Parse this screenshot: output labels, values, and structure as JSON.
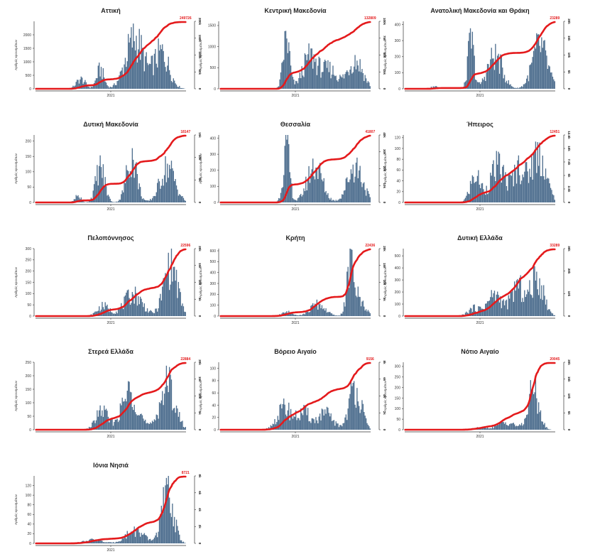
{
  "figure": {
    "x_tick_label": "2021",
    "y_axis_label": "Αριθμός κρουσμάτων",
    "colors": {
      "bars": "#4f6f8f",
      "line": "#e41a1c",
      "axis": "#333333"
    }
  },
  "chart_data": [
    {
      "type": "bar+line",
      "title": "Αττική",
      "ylim": [
        0,
        2500
      ],
      "yticks": [
        "0",
        "500",
        "1000",
        "1500",
        "2000"
      ],
      "cum_max": 249726,
      "cum_ticks": [
        "200k",
        "150k",
        "100k",
        "50k",
        "0"
      ],
      "cum_marks": [
        {
          "t": 0.56,
          "label": ""
        },
        {
          "t": 0.72,
          "label": ""
        },
        {
          "t": 1.0,
          "label": "249726"
        }
      ],
      "peaks": [
        [
          0.3,
          400,
          0.03
        ],
        [
          0.43,
          800,
          0.025
        ],
        [
          0.66,
          2100,
          0.06
        ],
        [
          0.84,
          1500,
          0.05
        ]
      ]
    },
    {
      "type": "bar+line",
      "title": "Κεντρική Μακεδονία",
      "ylim": [
        0,
        1600
      ],
      "yticks": [
        "0",
        "500",
        "1000",
        "1500"
      ],
      "cum_max": 132809,
      "cum_ticks": [
        "100k",
        "75k",
        "50k",
        "25k",
        "0"
      ],
      "cum_marks": [
        {
          "t": 0.46,
          "label": ""
        },
        {
          "t": 0.66,
          "label": ""
        },
        {
          "t": 1.0,
          "label": "132809"
        }
      ],
      "peaks": [
        [
          0.44,
          1350,
          0.022
        ],
        [
          0.6,
          850,
          0.05
        ],
        [
          0.73,
          500,
          0.05
        ],
        [
          0.9,
          780,
          0.05
        ]
      ]
    },
    {
      "type": "bar+line",
      "title": "Ανατολική Μακεδονία και Θράκη",
      "ylim": [
        0,
        420
      ],
      "yticks": [
        "0",
        "100",
        "200",
        "300",
        "400"
      ],
      "cum_max": 23289,
      "cum_ticks": [
        "20k",
        "15k",
        "10k",
        "5k",
        "0"
      ],
      "cum_marks": [
        {
          "t": 0.45,
          "label": ""
        },
        {
          "t": 0.7,
          "label": ""
        },
        {
          "t": 1.0,
          "label": "23289"
        }
      ],
      "peaks": [
        [
          0.2,
          15,
          0.03
        ],
        [
          0.44,
          340,
          0.02
        ],
        [
          0.6,
          230,
          0.05
        ],
        [
          0.9,
          300,
          0.05
        ]
      ]
    },
    {
      "type": "bar+line",
      "title": "Δυτική Μακεδονία",
      "ylim": [
        0,
        220
      ],
      "yticks": [
        "0",
        "50",
        "100",
        "150",
        "200"
      ],
      "cum_max": 18147,
      "cum_ticks": [
        "15k",
        "10k",
        "5k",
        "0"
      ],
      "cum_marks": [
        {
          "t": 0.44,
          "label": ""
        },
        {
          "t": 0.63,
          "label": ""
        },
        {
          "t": 1.0,
          "label": "18147"
        }
      ],
      "peaks": [
        [
          0.28,
          25,
          0.02
        ],
        [
          0.43,
          130,
          0.03
        ],
        [
          0.64,
          170,
          0.035
        ],
        [
          0.88,
          130,
          0.05
        ]
      ]
    },
    {
      "type": "bar+line",
      "title": "Θεσσαλία",
      "ylim": [
        0,
        420
      ],
      "yticks": [
        "0",
        "100",
        "200",
        "300",
        "400"
      ],
      "cum_max": 41807,
      "cum_ticks": [
        "40k",
        "30k",
        "20k",
        "10k",
        "0"
      ],
      "cum_marks": [
        {
          "t": 0.45,
          "label": ""
        },
        {
          "t": 0.68,
          "label": ""
        },
        {
          "t": 1.0,
          "label": "41807"
        }
      ],
      "peaks": [
        [
          0.44,
          380,
          0.022
        ],
        [
          0.63,
          260,
          0.05
        ],
        [
          0.9,
          260,
          0.05
        ]
      ]
    },
    {
      "type": "bar+line",
      "title": "Ήπειρος",
      "ylim": [
        0,
        125
      ],
      "yticks": [
        "0",
        "20",
        "40",
        "60",
        "80",
        "100",
        "120"
      ],
      "cum_max": 12451,
      "cum_ticks": [
        "12.5k",
        "10k",
        "7.5k",
        "5k",
        "2.5k",
        "0"
      ],
      "cum_marks": [
        {
          "t": 0.58,
          "label": ""
        },
        {
          "t": 0.72,
          "label": ""
        },
        {
          "t": 1.0,
          "label": "12451"
        }
      ],
      "peaks": [
        [
          0.47,
          55,
          0.035
        ],
        [
          0.62,
          75,
          0.05
        ],
        [
          0.76,
          70,
          0.04
        ],
        [
          0.89,
          105,
          0.05
        ]
      ]
    },
    {
      "type": "bar+line",
      "title": "Πελοπόννησος",
      "ylim": [
        0,
        300
      ],
      "yticks": [
        "0",
        "50",
        "100",
        "150",
        "200",
        "250",
        "300"
      ],
      "cum_max": 22596,
      "cum_ticks": [
        "20k",
        "15k",
        "10k",
        "5k",
        "0"
      ],
      "cum_marks": [
        {
          "t": 0.58,
          "label": ""
        },
        {
          "t": 0.8,
          "label": ""
        },
        {
          "t": 1.0,
          "label": "22596"
        }
      ],
      "peaks": [
        [
          0.45,
          50,
          0.04
        ],
        [
          0.65,
          110,
          0.06
        ],
        [
          0.9,
          260,
          0.045
        ]
      ]
    },
    {
      "type": "bar+line",
      "title": "Κρήτη",
      "ylim": [
        0,
        620
      ],
      "yticks": [
        "0",
        "100",
        "200",
        "300",
        "400",
        "500",
        "600"
      ],
      "cum_max": 22436,
      "cum_ticks": [
        "20k",
        "15k",
        "10k",
        "5k",
        "0"
      ],
      "cum_marks": [
        {
          "t": 0.66,
          "label": ""
        },
        {
          "t": 0.82,
          "label": ""
        },
        {
          "t": 1.0,
          "label": "22436"
        }
      ],
      "peaks": [
        [
          0.45,
          40,
          0.04
        ],
        [
          0.65,
          120,
          0.05
        ],
        [
          0.87,
          500,
          0.025
        ],
        [
          0.93,
          150,
          0.04
        ]
      ]
    },
    {
      "type": "bar+line",
      "title": "Δυτική Ελλάδα",
      "ylim": [
        0,
        560
      ],
      "yticks": [
        "0",
        "100",
        "200",
        "300",
        "400",
        "500"
      ],
      "cum_max": 33289,
      "cum_ticks": [
        "30k",
        "20k",
        "10k",
        "0"
      ],
      "cum_marks": [
        {
          "t": 0.62,
          "label": ""
        },
        {
          "t": 0.73,
          "label": ""
        },
        {
          "t": 1.0,
          "label": "33289"
        }
      ],
      "peaks": [
        [
          0.46,
          70,
          0.04
        ],
        [
          0.6,
          200,
          0.05
        ],
        [
          0.75,
          280,
          0.04
        ],
        [
          0.88,
          360,
          0.045
        ]
      ]
    },
    {
      "type": "bar+line",
      "title": "Στερεά Ελλάδα",
      "ylim": [
        0,
        250
      ],
      "yticks": [
        "0",
        "50",
        "100",
        "150",
        "200",
        "250"
      ],
      "cum_max": 22884,
      "cum_ticks": [
        "20k",
        "15k",
        "10k",
        "5k",
        "0"
      ],
      "cum_marks": [
        {
          "t": 0.48,
          "label": ""
        },
        {
          "t": 0.66,
          "label": ""
        },
        {
          "t": 1.0,
          "label": "22884"
        }
      ],
      "peaks": [
        [
          0.44,
          80,
          0.04
        ],
        [
          0.63,
          160,
          0.055
        ],
        [
          0.88,
          190,
          0.05
        ]
      ]
    },
    {
      "type": "bar+line",
      "title": "Βόρειο Αιγαίο",
      "ylim": [
        0,
        110
      ],
      "yticks": [
        "0",
        "20",
        "40",
        "60",
        "80",
        "100"
      ],
      "cum_max": 9156,
      "cum_ticks": [
        "8k",
        "6k",
        "4k",
        "2k",
        "0"
      ],
      "cum_marks": [
        {
          "t": 0.46,
          "label": ""
        },
        {
          "t": 0.68,
          "label": ""
        },
        {
          "t": 1.0,
          "label": "9156"
        }
      ],
      "peaks": [
        [
          0.43,
          40,
          0.05
        ],
        [
          0.56,
          30,
          0.04
        ],
        [
          0.7,
          30,
          0.05
        ],
        [
          0.9,
          80,
          0.04
        ]
      ]
    },
    {
      "type": "bar+line",
      "title": "Νότιο Αιγαίο",
      "ylim": [
        0,
        320
      ],
      "yticks": [
        "0",
        "50",
        "100",
        "150",
        "200",
        "250",
        "300"
      ],
      "cum_max": 20045,
      "cum_ticks": [
        "20k",
        "15k",
        "10k",
        "5k",
        "0"
      ],
      "cum_marks": [
        {
          "t": 0.72,
          "label": ""
        },
        {
          "t": 0.85,
          "label": ""
        },
        {
          "t": 1.0,
          "label": "20045"
        }
      ],
      "peaks": [
        [
          0.5,
          10,
          0.05
        ],
        [
          0.68,
          40,
          0.06
        ],
        [
          0.86,
          220,
          0.035
        ]
      ]
    },
    {
      "type": "bar+line",
      "title": "Ιόνια Νησιά",
      "ylim": [
        0,
        140
      ],
      "yticks": [
        "0",
        "20",
        "40",
        "60",
        "80",
        "100",
        "120"
      ],
      "cum_max": 8721,
      "cum_ticks": [
        "8k",
        "6k",
        "4k",
        "2k",
        "0"
      ],
      "cum_marks": [
        {
          "t": 0.68,
          "label": ""
        },
        {
          "t": 0.85,
          "label": ""
        },
        {
          "t": 1.0,
          "label": "8721"
        }
      ],
      "peaks": [
        [
          0.38,
          8,
          0.06
        ],
        [
          0.66,
          30,
          0.06
        ],
        [
          0.88,
          115,
          0.04
        ]
      ]
    }
  ]
}
